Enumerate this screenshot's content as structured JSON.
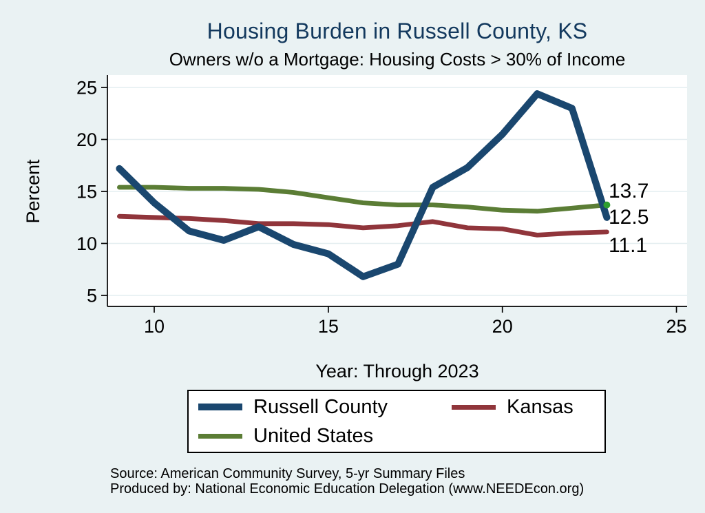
{
  "chart_data": {
    "type": "line",
    "title": "Housing Burden in Russell County, KS",
    "subtitle": "Owners w/o a Mortgage: Housing Costs > 30% of Income",
    "xlabel": "Year: Through 2023",
    "ylabel": "Percent",
    "x": [
      9,
      10,
      11,
      12,
      13,
      14,
      15,
      16,
      17,
      18,
      19,
      20,
      21,
      22,
      23
    ],
    "xticks": [
      10,
      15,
      20,
      25
    ],
    "yticks": [
      5,
      10,
      15,
      20,
      25
    ],
    "xlim": [
      8.65,
      25.3
    ],
    "ylim": [
      3.9,
      26.2
    ],
    "grid": true,
    "legend_position": "bottom",
    "series": [
      {
        "name": "Russell County",
        "color": "#1a476f",
        "stroke_width": 10,
        "values": [
          17.2,
          13.9,
          11.2,
          10.3,
          11.6,
          9.9,
          9.0,
          6.8,
          8.0,
          15.4,
          17.3,
          20.5,
          24.4,
          23.0,
          12.5
        ]
      },
      {
        "name": "Kansas",
        "color": "#90353b",
        "stroke_width": 6.8,
        "values": [
          12.6,
          12.5,
          12.4,
          12.2,
          11.9,
          11.9,
          11.8,
          11.5,
          11.7,
          12.1,
          11.5,
          11.4,
          10.8,
          11.0,
          11.1
        ]
      },
      {
        "name": "United States",
        "color": "#5b7d35",
        "stroke_width": 6.8,
        "end_marker": true,
        "marker_color": "#2f9e2f",
        "values": [
          15.4,
          15.4,
          15.3,
          15.3,
          15.2,
          14.9,
          14.4,
          13.9,
          13.7,
          13.7,
          13.5,
          13.2,
          13.1,
          13.4,
          13.7
        ]
      }
    ],
    "end_labels": [
      "13.7",
      "12.5",
      "11.1"
    ]
  },
  "source": {
    "line1": "Source: American Community Survey, 5-yr Summary Files",
    "line2": "Produced by: National Economic Education Delegation (www.NEEDEcon.org)"
  },
  "colors": {
    "background": "#eaf2f3",
    "plot_background": "#ffffff",
    "gridline": "#e4edf0",
    "axis": "#000000",
    "title": "#13395e"
  }
}
